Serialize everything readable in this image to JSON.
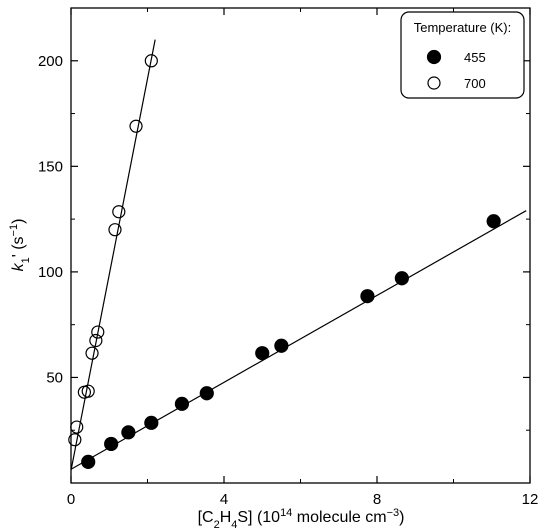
{
  "chart_data": {
    "type": "scatter",
    "xlabel": {
      "prefix": "[C",
      "sub1": "2",
      "mid": "H",
      "sub2": "4",
      "suffix": "S] (10",
      "sup": "14",
      "suffix2": " molecule cm",
      "sup2": "−3",
      "suffix3": ")"
    },
    "ylabel": {
      "k": "k",
      "sub": "1",
      "rest": "' (s",
      "sup": "−1",
      "close": ")"
    },
    "xlim": [
      0,
      12
    ],
    "ylim": [
      0,
      225
    ],
    "xticks": [
      0,
      4,
      8,
      12
    ],
    "yticks": [
      50,
      100,
      150,
      200
    ],
    "xtick_labels": [
      "0",
      "4",
      "8",
      "12"
    ],
    "ytick_labels": [
      "50",
      "100",
      "150",
      "200"
    ],
    "grid": false,
    "legend": {
      "title": "Temperature (K):",
      "placement": "top-right"
    },
    "series": [
      {
        "name": "455",
        "marker": "filled-circle",
        "color": "#000000",
        "points": [
          [
            0.45,
            10
          ],
          [
            1.05,
            18.5
          ],
          [
            1.5,
            24
          ],
          [
            2.1,
            28.5
          ],
          [
            2.9,
            37.5
          ],
          [
            3.55,
            42.5
          ],
          [
            5.0,
            61.5
          ],
          [
            5.5,
            65
          ],
          [
            7.75,
            88.5
          ],
          [
            8.65,
            97
          ],
          [
            11.05,
            124
          ]
        ],
        "fit": [
          [
            0,
            6.5
          ],
          [
            11.9,
            129
          ]
        ]
      },
      {
        "name": "700",
        "marker": "open-circle",
        "color": "#000000",
        "points": [
          [
            0.1,
            20.5
          ],
          [
            0.15,
            26.5
          ],
          [
            0.35,
            43
          ],
          [
            0.45,
            43.5
          ],
          [
            0.55,
            61.5
          ],
          [
            0.65,
            67.5
          ],
          [
            0.7,
            71.5
          ],
          [
            1.15,
            120
          ],
          [
            1.25,
            128.5
          ],
          [
            1.7,
            169
          ],
          [
            2.1,
            200
          ]
        ],
        "fit": [
          [
            0,
            6
          ],
          [
            2.2,
            210
          ]
        ]
      }
    ]
  }
}
